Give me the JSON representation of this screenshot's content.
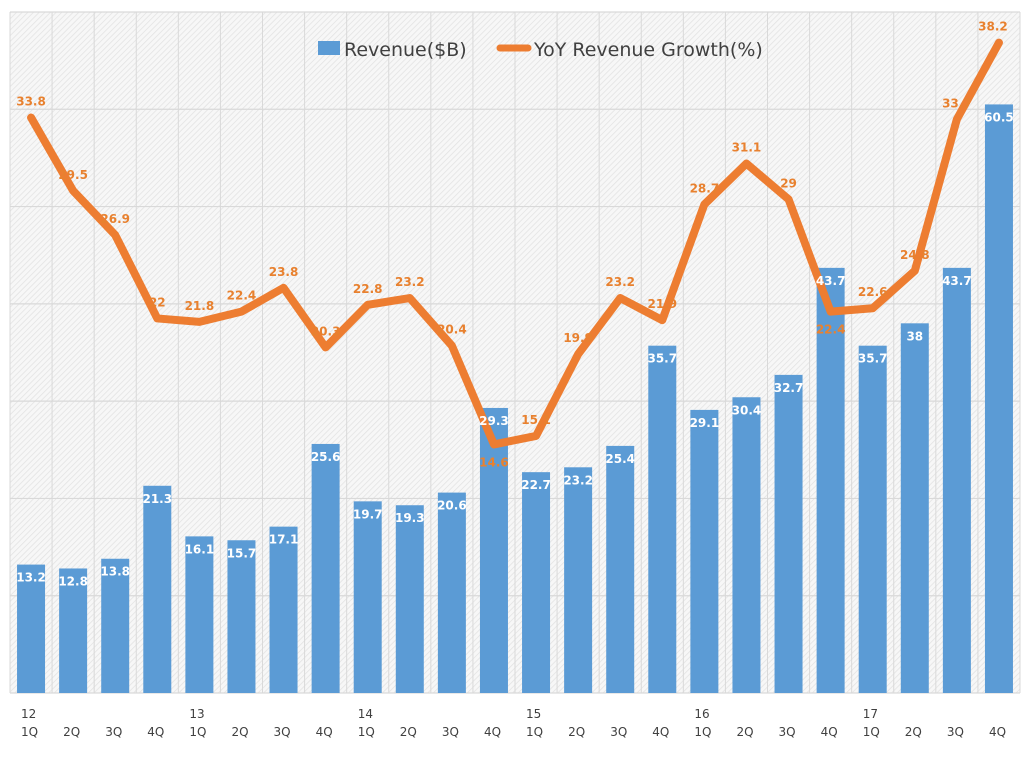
{
  "chart_data": {
    "type": "bar+line",
    "categories": [
      "1Q",
      "2Q",
      "3Q",
      "4Q",
      "1Q",
      "2Q",
      "3Q",
      "4Q",
      "1Q",
      "2Q",
      "3Q",
      "4Q",
      "1Q",
      "2Q",
      "3Q",
      "4Q",
      "1Q",
      "2Q",
      "3Q",
      "4Q",
      "1Q",
      "2Q",
      "3Q",
      "4Q"
    ],
    "year_labels": [
      "12",
      "",
      "",
      "",
      "13",
      "",
      "",
      "",
      "14",
      "",
      "",
      "",
      "15",
      "",
      "",
      "",
      "16",
      "",
      "",
      "",
      "17",
      "",
      "",
      ""
    ],
    "series": [
      {
        "name": "Revenue($B)",
        "type": "bar",
        "axis": "primary",
        "color": "#5b9bd5",
        "values": [
          13.2,
          12.8,
          13.8,
          21.3,
          16.1,
          15.7,
          17.1,
          25.6,
          19.7,
          19.3,
          20.6,
          29.3,
          22.7,
          23.2,
          25.4,
          35.7,
          29.1,
          30.4,
          32.7,
          43.7,
          35.7,
          38.0,
          43.7,
          60.5
        ]
      },
      {
        "name": "YoY Revenue Growth(%)",
        "type": "line",
        "axis": "secondary",
        "color": "#ed7d31",
        "values": [
          33.8,
          29.5,
          26.9,
          22.0,
          21.8,
          22.4,
          23.8,
          20.3,
          22.8,
          23.2,
          20.4,
          14.6,
          15.1,
          19.9,
          23.2,
          21.9,
          28.7,
          31.1,
          29.0,
          22.4,
          22.6,
          24.8,
          33.7,
          38.2
        ]
      }
    ],
    "ylim": [
      0,
      70
    ],
    "y2lim": [
      0,
      40
    ],
    "grid": true,
    "legend": "top-center"
  }
}
